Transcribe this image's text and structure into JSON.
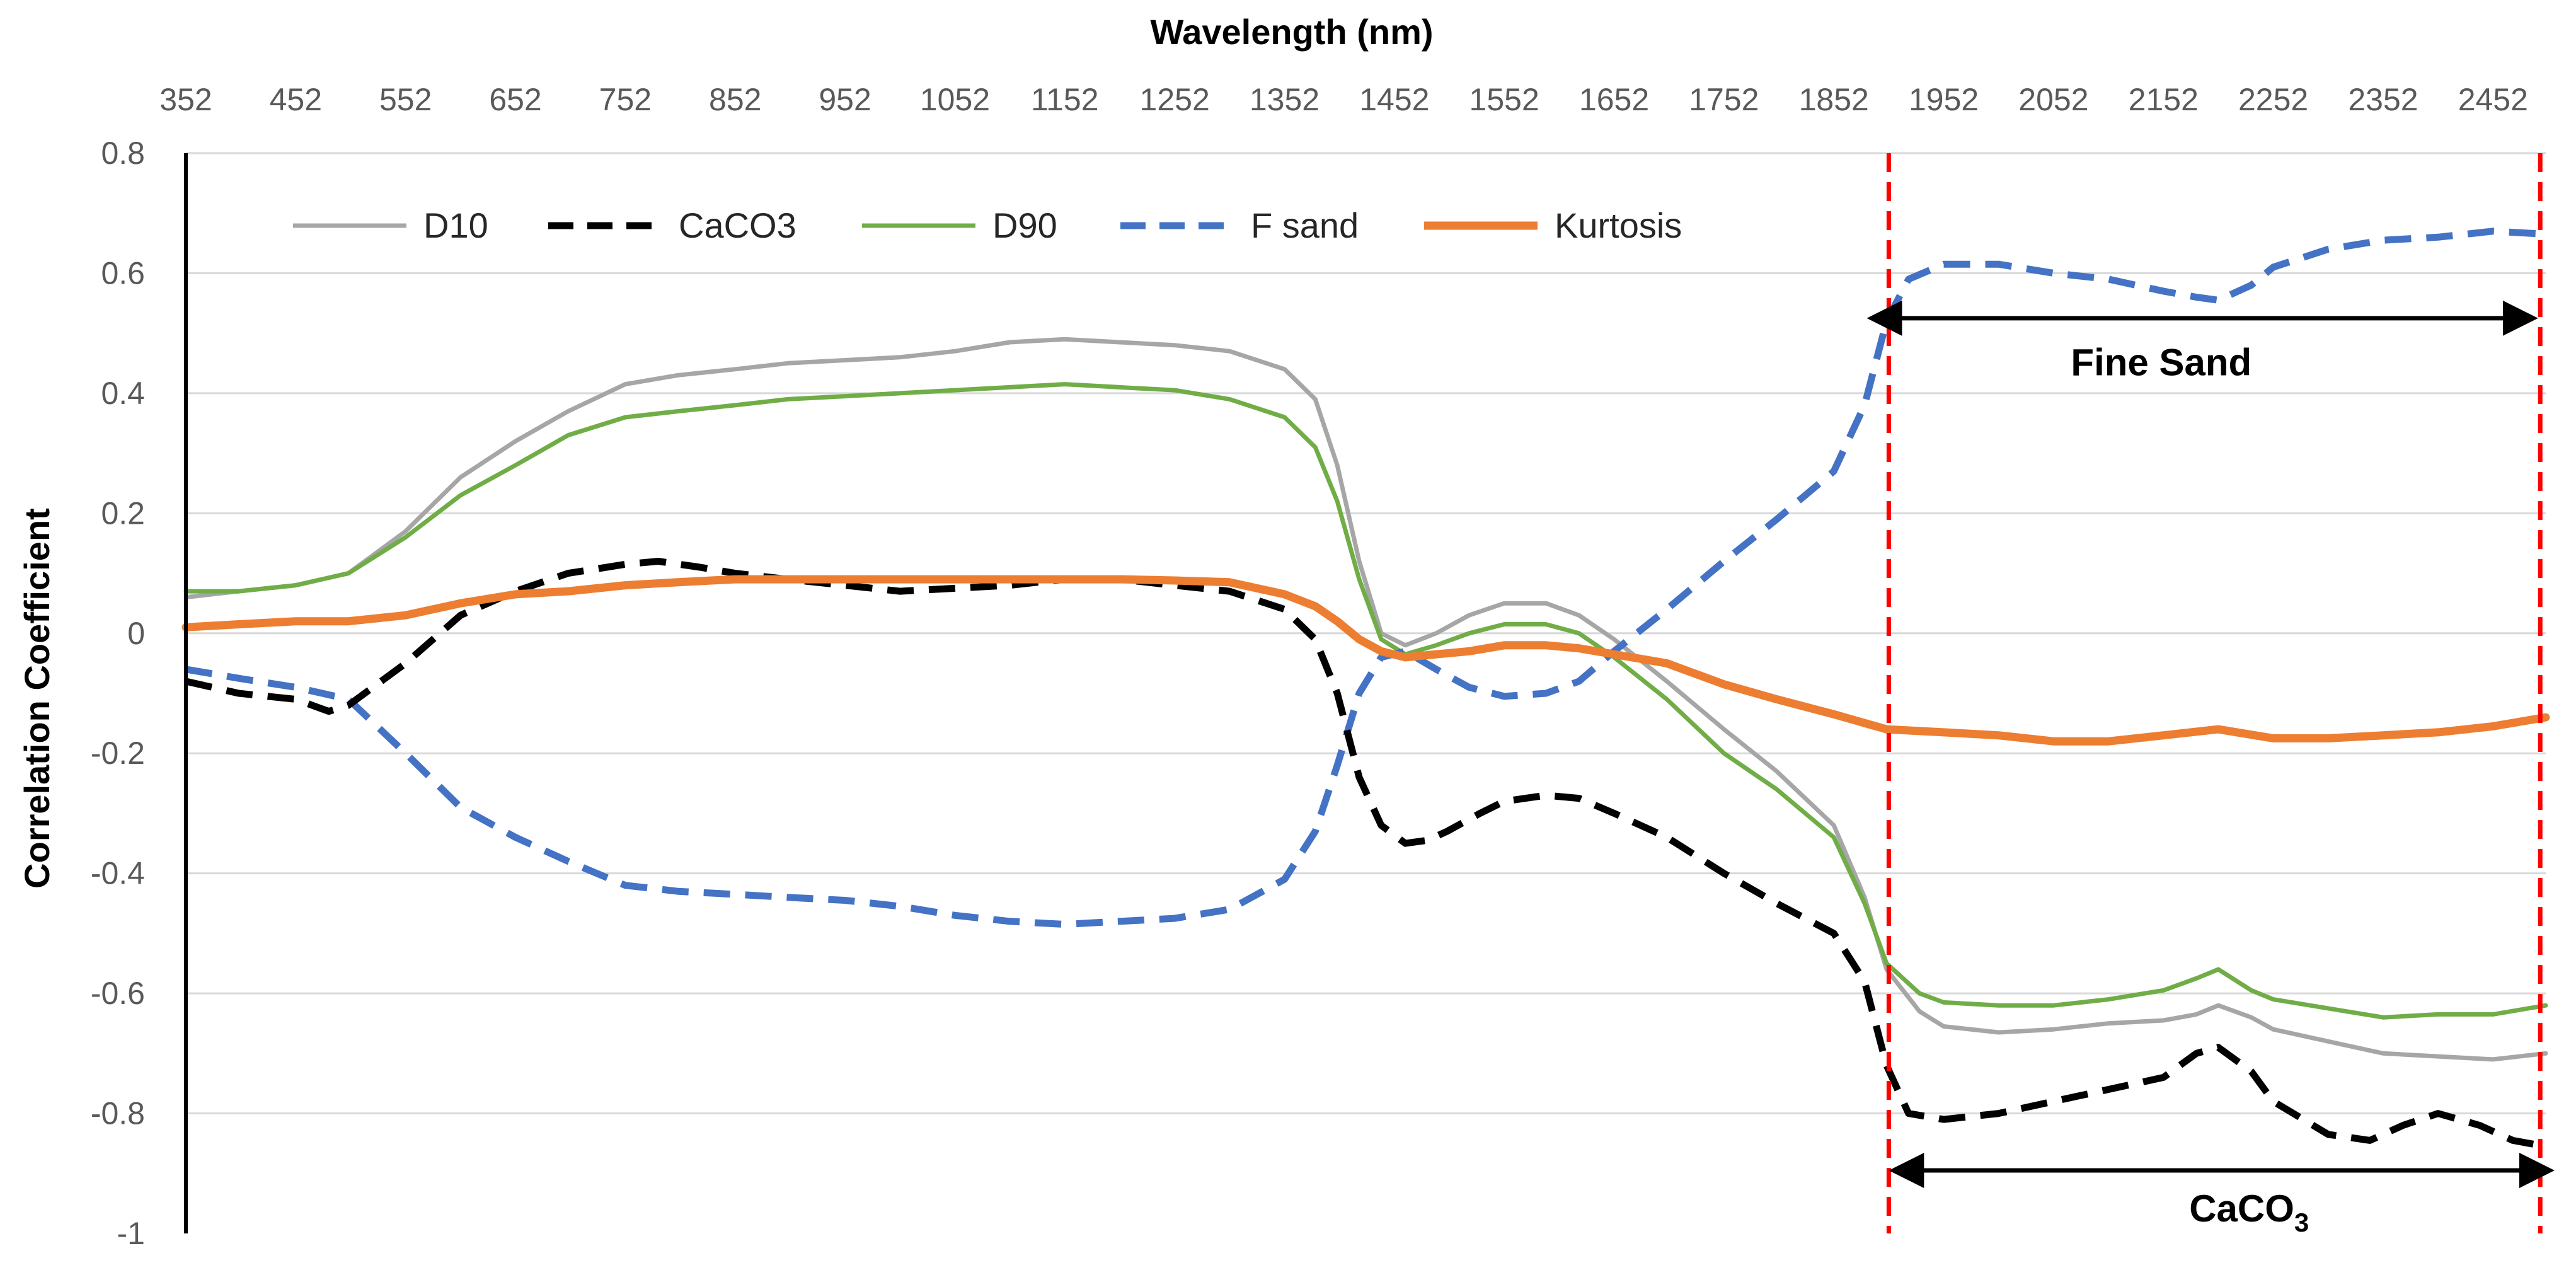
{
  "chart_data": {
    "type": "line",
    "title": "",
    "xlabel": "Wavelength (nm)",
    "ylabel": "Correlation Coefficient",
    "xaxis_position": "top",
    "xlim": [
      352,
      2500
    ],
    "ylim": [
      -1,
      0.8
    ],
    "x_ticks": [
      352,
      452,
      552,
      652,
      752,
      852,
      952,
      1052,
      1152,
      1252,
      1352,
      1452,
      1552,
      1652,
      1752,
      1852,
      1952,
      2052,
      2152,
      2252,
      2352,
      2452
    ],
    "x_tick_labels": [
      "352",
      "452",
      "552",
      "652",
      "752",
      "852",
      "952",
      "1052",
      "1152",
      "1252",
      "1352",
      "1452",
      "1552",
      "1652",
      "1752",
      "1852",
      "1952",
      "2052",
      "2152",
      "2252",
      "2352",
      "2452"
    ],
    "y_ticks": [
      0.8,
      0.6,
      0.4,
      0.2,
      0,
      -0.2,
      -0.4,
      -0.6,
      -0.8,
      -1
    ],
    "y_tick_labels": [
      "0.8",
      "0.6",
      "0.4",
      "0.2",
      "0",
      "-0.2",
      "-0.4",
      "-0.6",
      "-0.8",
      "-1"
    ],
    "grid": "horizontal",
    "legend_position": "top-left",
    "series": [
      {
        "name": "D10",
        "color": "#A6A6A6",
        "dash": "solid",
        "points": [
          [
            352,
            0.06
          ],
          [
            400,
            0.07
          ],
          [
            452,
            0.08
          ],
          [
            500,
            0.1
          ],
          [
            552,
            0.17
          ],
          [
            602,
            0.26
          ],
          [
            652,
            0.32
          ],
          [
            700,
            0.37
          ],
          [
            752,
            0.415
          ],
          [
            800,
            0.43
          ],
          [
            852,
            0.44
          ],
          [
            900,
            0.45
          ],
          [
            952,
            0.455
          ],
          [
            1002,
            0.46
          ],
          [
            1052,
            0.47
          ],
          [
            1102,
            0.485
          ],
          [
            1152,
            0.49
          ],
          [
            1202,
            0.485
          ],
          [
            1252,
            0.48
          ],
          [
            1302,
            0.47
          ],
          [
            1352,
            0.44
          ],
          [
            1380,
            0.39
          ],
          [
            1400,
            0.28
          ],
          [
            1420,
            0.12
          ],
          [
            1440,
            0.0
          ],
          [
            1462,
            -0.02
          ],
          [
            1490,
            0.0
          ],
          [
            1520,
            0.03
          ],
          [
            1552,
            0.05
          ],
          [
            1590,
            0.05
          ],
          [
            1620,
            0.03
          ],
          [
            1652,
            -0.01
          ],
          [
            1700,
            -0.08
          ],
          [
            1752,
            -0.16
          ],
          [
            1800,
            -0.23
          ],
          [
            1852,
            -0.32
          ],
          [
            1880,
            -0.44
          ],
          [
            1900,
            -0.56
          ],
          [
            1930,
            -0.63
          ],
          [
            1952,
            -0.655
          ],
          [
            2002,
            -0.665
          ],
          [
            2052,
            -0.66
          ],
          [
            2102,
            -0.65
          ],
          [
            2152,
            -0.645
          ],
          [
            2182,
            -0.635
          ],
          [
            2202,
            -0.62
          ],
          [
            2232,
            -0.64
          ],
          [
            2252,
            -0.66
          ],
          [
            2302,
            -0.68
          ],
          [
            2352,
            -0.7
          ],
          [
            2402,
            -0.705
          ],
          [
            2452,
            -0.71
          ],
          [
            2500,
            -0.7
          ]
        ]
      },
      {
        "name": "CaCO3",
        "color": "#000000",
        "dash": "dashed",
        "points": [
          [
            352,
            -0.08
          ],
          [
            400,
            -0.1
          ],
          [
            452,
            -0.11
          ],
          [
            482,
            -0.13
          ],
          [
            500,
            -0.12
          ],
          [
            552,
            -0.05
          ],
          [
            602,
            0.03
          ],
          [
            652,
            0.07
          ],
          [
            700,
            0.1
          ],
          [
            752,
            0.115
          ],
          [
            782,
            0.12
          ],
          [
            820,
            0.11
          ],
          [
            852,
            0.1
          ],
          [
            900,
            0.09
          ],
          [
            952,
            0.08
          ],
          [
            1002,
            0.07
          ],
          [
            1052,
            0.075
          ],
          [
            1102,
            0.08
          ],
          [
            1152,
            0.09
          ],
          [
            1202,
            0.09
          ],
          [
            1252,
            0.08
          ],
          [
            1302,
            0.07
          ],
          [
            1352,
            0.04
          ],
          [
            1380,
            -0.01
          ],
          [
            1400,
            -0.1
          ],
          [
            1420,
            -0.24
          ],
          [
            1440,
            -0.32
          ],
          [
            1462,
            -0.35
          ],
          [
            1482,
            -0.345
          ],
          [
            1500,
            -0.33
          ],
          [
            1530,
            -0.3
          ],
          [
            1552,
            -0.28
          ],
          [
            1590,
            -0.27
          ],
          [
            1620,
            -0.275
          ],
          [
            1652,
            -0.3
          ],
          [
            1700,
            -0.34
          ],
          [
            1752,
            -0.4
          ],
          [
            1800,
            -0.45
          ],
          [
            1852,
            -0.5
          ],
          [
            1880,
            -0.58
          ],
          [
            1900,
            -0.72
          ],
          [
            1920,
            -0.8
          ],
          [
            1952,
            -0.81
          ],
          [
            2002,
            -0.8
          ],
          [
            2052,
            -0.78
          ],
          [
            2102,
            -0.76
          ],
          [
            2152,
            -0.74
          ],
          [
            2182,
            -0.7
          ],
          [
            2202,
            -0.69
          ],
          [
            2232,
            -0.73
          ],
          [
            2252,
            -0.78
          ],
          [
            2302,
            -0.835
          ],
          [
            2340,
            -0.845
          ],
          [
            2370,
            -0.82
          ],
          [
            2402,
            -0.8
          ],
          [
            2440,
            -0.82
          ],
          [
            2470,
            -0.845
          ],
          [
            2500,
            -0.855
          ]
        ]
      },
      {
        "name": "D90",
        "color": "#70AD47",
        "dash": "solid",
        "points": [
          [
            352,
            0.07
          ],
          [
            400,
            0.07
          ],
          [
            452,
            0.08
          ],
          [
            500,
            0.1
          ],
          [
            552,
            0.16
          ],
          [
            602,
            0.23
          ],
          [
            652,
            0.28
          ],
          [
            700,
            0.33
          ],
          [
            752,
            0.36
          ],
          [
            800,
            0.37
          ],
          [
            852,
            0.38
          ],
          [
            900,
            0.39
          ],
          [
            952,
            0.395
          ],
          [
            1002,
            0.4
          ],
          [
            1052,
            0.405
          ],
          [
            1102,
            0.41
          ],
          [
            1152,
            0.415
          ],
          [
            1202,
            0.41
          ],
          [
            1252,
            0.405
          ],
          [
            1302,
            0.39
          ],
          [
            1352,
            0.36
          ],
          [
            1380,
            0.31
          ],
          [
            1400,
            0.22
          ],
          [
            1420,
            0.09
          ],
          [
            1440,
            -0.01
          ],
          [
            1462,
            -0.035
          ],
          [
            1490,
            -0.02
          ],
          [
            1520,
            0.0
          ],
          [
            1552,
            0.015
          ],
          [
            1590,
            0.015
          ],
          [
            1620,
            0.0
          ],
          [
            1652,
            -0.04
          ],
          [
            1700,
            -0.11
          ],
          [
            1752,
            -0.2
          ],
          [
            1800,
            -0.26
          ],
          [
            1852,
            -0.34
          ],
          [
            1880,
            -0.45
          ],
          [
            1900,
            -0.55
          ],
          [
            1930,
            -0.6
          ],
          [
            1952,
            -0.615
          ],
          [
            2002,
            -0.62
          ],
          [
            2052,
            -0.62
          ],
          [
            2102,
            -0.61
          ],
          [
            2152,
            -0.595
          ],
          [
            2182,
            -0.575
          ],
          [
            2202,
            -0.56
          ],
          [
            2232,
            -0.595
          ],
          [
            2252,
            -0.61
          ],
          [
            2302,
            -0.625
          ],
          [
            2352,
            -0.64
          ],
          [
            2402,
            -0.635
          ],
          [
            2452,
            -0.635
          ],
          [
            2500,
            -0.62
          ]
        ]
      },
      {
        "name": "F sand",
        "color": "#4472C4",
        "dash": "dashed",
        "points": [
          [
            352,
            -0.06
          ],
          [
            400,
            -0.075
          ],
          [
            452,
            -0.09
          ],
          [
            500,
            -0.11
          ],
          [
            552,
            -0.2
          ],
          [
            602,
            -0.29
          ],
          [
            652,
            -0.34
          ],
          [
            700,
            -0.38
          ],
          [
            752,
            -0.42
          ],
          [
            800,
            -0.43
          ],
          [
            852,
            -0.435
          ],
          [
            900,
            -0.44
          ],
          [
            952,
            -0.445
          ],
          [
            1002,
            -0.455
          ],
          [
            1052,
            -0.47
          ],
          [
            1102,
            -0.48
          ],
          [
            1152,
            -0.485
          ],
          [
            1202,
            -0.48
          ],
          [
            1252,
            -0.475
          ],
          [
            1302,
            -0.46
          ],
          [
            1352,
            -0.41
          ],
          [
            1380,
            -0.33
          ],
          [
            1400,
            -0.22
          ],
          [
            1420,
            -0.1
          ],
          [
            1440,
            -0.04
          ],
          [
            1462,
            -0.03
          ],
          [
            1490,
            -0.06
          ],
          [
            1520,
            -0.09
          ],
          [
            1552,
            -0.105
          ],
          [
            1590,
            -0.1
          ],
          [
            1620,
            -0.08
          ],
          [
            1652,
            -0.03
          ],
          [
            1700,
            0.04
          ],
          [
            1752,
            0.12
          ],
          [
            1800,
            0.19
          ],
          [
            1852,
            0.27
          ],
          [
            1880,
            0.38
          ],
          [
            1900,
            0.52
          ],
          [
            1920,
            0.59
          ],
          [
            1952,
            0.615
          ],
          [
            2002,
            0.615
          ],
          [
            2052,
            0.6
          ],
          [
            2102,
            0.59
          ],
          [
            2152,
            0.57
          ],
          [
            2182,
            0.56
          ],
          [
            2202,
            0.555
          ],
          [
            2232,
            0.58
          ],
          [
            2252,
            0.61
          ],
          [
            2302,
            0.64
          ],
          [
            2352,
            0.655
          ],
          [
            2402,
            0.66
          ],
          [
            2452,
            0.67
          ],
          [
            2500,
            0.665
          ]
        ]
      },
      {
        "name": "Kurtosis",
        "color": "#ED7D31",
        "dash": "solid",
        "points": [
          [
            352,
            0.01
          ],
          [
            400,
            0.015
          ],
          [
            452,
            0.02
          ],
          [
            500,
            0.02
          ],
          [
            552,
            0.03
          ],
          [
            602,
            0.05
          ],
          [
            652,
            0.065
          ],
          [
            700,
            0.07
          ],
          [
            752,
            0.08
          ],
          [
            800,
            0.085
          ],
          [
            852,
            0.09
          ],
          [
            900,
            0.09
          ],
          [
            952,
            0.09
          ],
          [
            1002,
            0.09
          ],
          [
            1052,
            0.09
          ],
          [
            1102,
            0.09
          ],
          [
            1152,
            0.09
          ],
          [
            1202,
            0.09
          ],
          [
            1252,
            0.088
          ],
          [
            1302,
            0.085
          ],
          [
            1352,
            0.065
          ],
          [
            1380,
            0.045
          ],
          [
            1400,
            0.02
          ],
          [
            1420,
            -0.01
          ],
          [
            1440,
            -0.03
          ],
          [
            1462,
            -0.04
          ],
          [
            1490,
            -0.035
          ],
          [
            1520,
            -0.03
          ],
          [
            1552,
            -0.02
          ],
          [
            1590,
            -0.02
          ],
          [
            1620,
            -0.025
          ],
          [
            1652,
            -0.035
          ],
          [
            1700,
            -0.05
          ],
          [
            1752,
            -0.085
          ],
          [
            1800,
            -0.11
          ],
          [
            1852,
            -0.135
          ],
          [
            1900,
            -0.16
          ],
          [
            1952,
            -0.165
          ],
          [
            2002,
            -0.17
          ],
          [
            2052,
            -0.18
          ],
          [
            2102,
            -0.18
          ],
          [
            2152,
            -0.17
          ],
          [
            2202,
            -0.16
          ],
          [
            2252,
            -0.175
          ],
          [
            2302,
            -0.175
          ],
          [
            2352,
            -0.17
          ],
          [
            2402,
            -0.165
          ],
          [
            2452,
            -0.155
          ],
          [
            2500,
            -0.14
          ]
        ]
      }
    ],
    "reference_lines": [
      {
        "x": 1902,
        "color": "#FF0000",
        "dash": "dashed"
      },
      {
        "x": 2495,
        "color": "#FF0000",
        "dash": "dashed"
      }
    ],
    "annotations": [
      {
        "text": "Fine Sand",
        "arrow_x": [
          1890,
          2485
        ],
        "arrow_y": 0.525,
        "text_x": 2150,
        "text_y": 0.43
      },
      {
        "text": "CaCO",
        "subscript": "3",
        "arrow_x": [
          1910,
          2500
        ],
        "arrow_y": -0.895,
        "text_x": 2230,
        "text_y": -0.98
      }
    ]
  }
}
